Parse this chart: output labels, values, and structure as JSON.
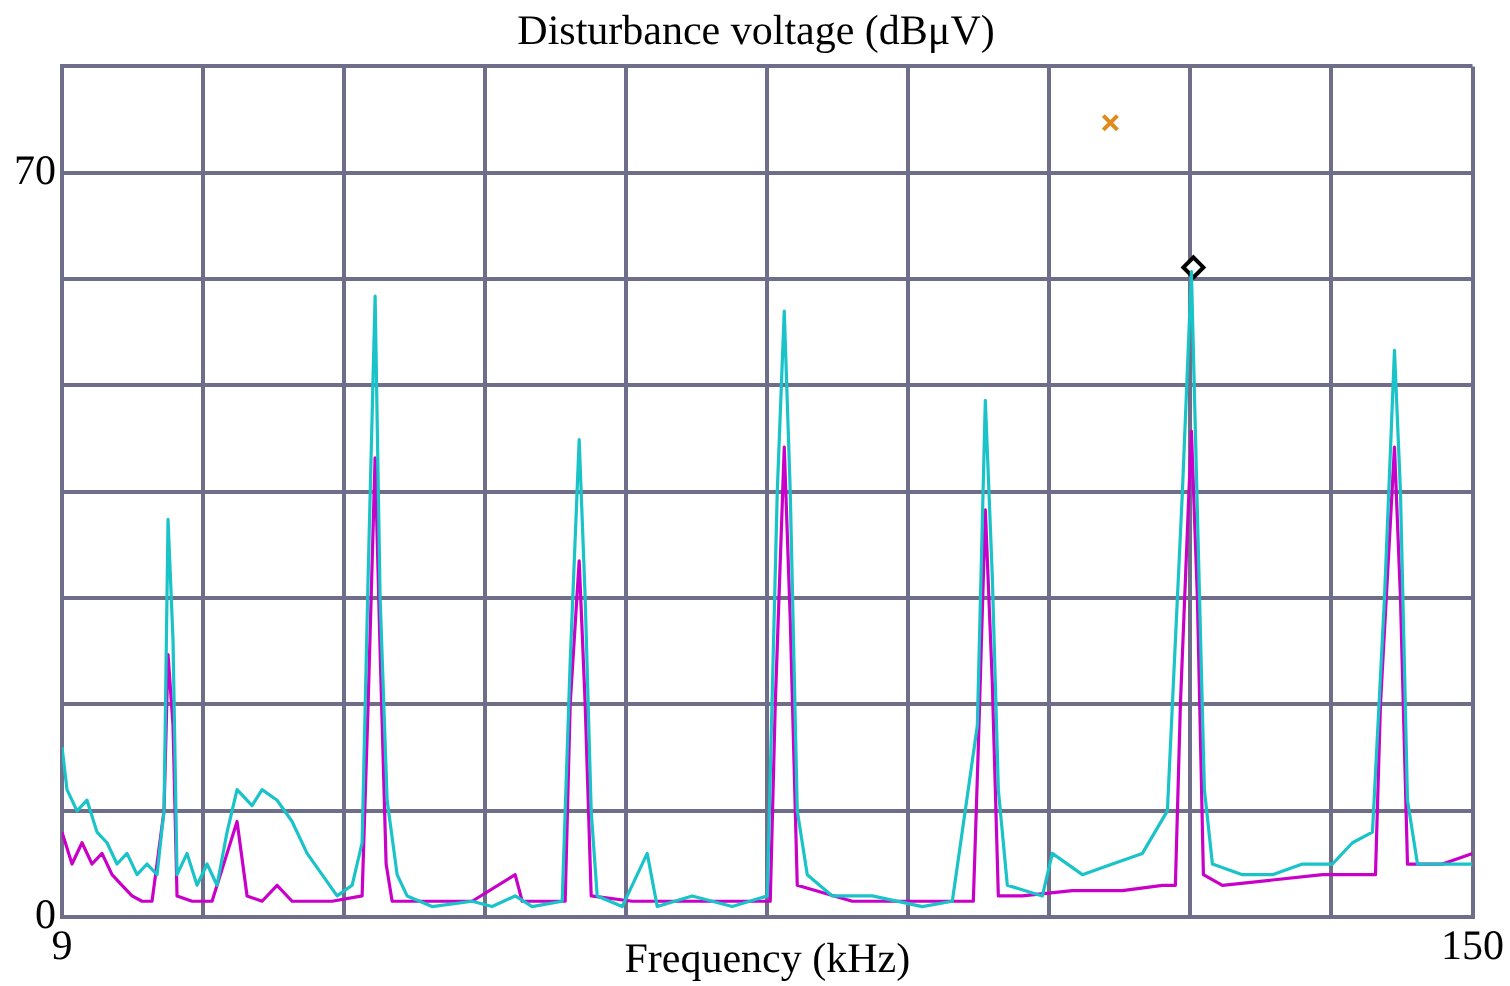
{
  "chart_data": {
    "type": "line",
    "title": "Disturbance voltage (dBμV)",
    "xlabel": "Frequency (kHz)",
    "xlim": [
      9,
      150
    ],
    "xticks": [
      9,
      {
        "value": 23.1,
        "label": null
      },
      {
        "value": 37.2,
        "label": null
      },
      {
        "value": 51.3,
        "label": null
      },
      {
        "value": 65.4,
        "label": null
      },
      {
        "value": 79.5,
        "label": null
      },
      {
        "value": 93.6,
        "label": null
      },
      {
        "value": 107.7,
        "label": null
      },
      {
        "value": 121.8,
        "label": null
      },
      {
        "value": 135.9,
        "label": null
      },
      150
    ],
    "ylim": [
      0,
      80
    ],
    "yticks": [
      0,
      {
        "value": 10,
        "label": null
      },
      {
        "value": 20,
        "label": null
      },
      {
        "value": 30,
        "label": null
      },
      {
        "value": 40,
        "label": null
      },
      {
        "value": 50,
        "label": null
      },
      {
        "value": 60,
        "label": null
      },
      70,
      {
        "value": 80,
        "label": null
      }
    ],
    "grid": true,
    "legend": false,
    "series": [
      {
        "color": "#19c3c8",
        "marker": "none",
        "x": [
          9,
          9.5,
          10.5,
          11.5,
          12.5,
          13.5,
          14.5,
          15.5,
          16.5,
          17.5,
          18.5,
          19.2,
          19.6,
          20.1,
          20.5,
          21.5,
          22.5,
          23.5,
          24.5,
          25.5,
          26.5,
          28,
          29,
          30.5,
          32,
          33.5,
          35,
          36.5,
          38,
          39,
          39.6,
          40.3,
          40.8,
          41.5,
          42.5,
          43.5,
          46,
          50,
          52,
          54.3,
          56,
          59,
          59.8,
          60.7,
          61.3,
          61.9,
          62.5,
          65,
          67.5,
          68.5,
          72,
          76,
          79.5,
          80.5,
          81.2,
          81.8,
          82.5,
          83.5,
          86,
          90,
          95,
          98,
          100.5,
          101.3,
          102,
          102.6,
          103.5,
          107,
          108,
          111,
          114,
          117,
          119.5,
          121,
          121.9,
          122.5,
          123.2,
          124,
          127,
          130,
          133,
          136,
          138,
          140,
          141.2,
          142.2,
          142.8,
          143.5,
          144.5,
          147,
          150
        ],
        "values": [
          16,
          12,
          10,
          11,
          8,
          7,
          5,
          6,
          4,
          5,
          4,
          10,
          37.4,
          26,
          4,
          6,
          3,
          5,
          3,
          8,
          12,
          10.5,
          12,
          11,
          9,
          6,
          4,
          2,
          3,
          7,
          32,
          58.4,
          30,
          11,
          4,
          2,
          1,
          1.5,
          1,
          2,
          1,
          1.5,
          24,
          44.9,
          30,
          10,
          2,
          1,
          6,
          1,
          2,
          1,
          2,
          40,
          57,
          40,
          10,
          4,
          2,
          2,
          1,
          1.5,
          18,
          48.6,
          32,
          12,
          3,
          2,
          6,
          4,
          5,
          6,
          10,
          40,
          60.7,
          38,
          12,
          5,
          4,
          4,
          5,
          5,
          7,
          8,
          30,
          53.3,
          40,
          11,
          5,
          5,
          5
        ]
      },
      {
        "color": "#c800c8",
        "marker": "none",
        "x": [
          9,
          10,
          11,
          12,
          13,
          14,
          15,
          16,
          17,
          18,
          19.2,
          19.6,
          20.1,
          20.5,
          22,
          24,
          25.5,
          26.5,
          27.5,
          29,
          30.5,
          32,
          36,
          39,
          39.6,
          40.3,
          40.8,
          41.4,
          42,
          50,
          54.3,
          55,
          59.3,
          59.8,
          60.7,
          61.3,
          61.9,
          66,
          72,
          79.8,
          80.3,
          81.2,
          81.8,
          82.5,
          88,
          95,
          98,
          100.1,
          100.6,
          101.3,
          102,
          102.6,
          105,
          110,
          115,
          119,
          120.3,
          120.8,
          121.9,
          122.5,
          123.1,
          125,
          130,
          135,
          139,
          140.3,
          140.8,
          142.2,
          142.8,
          143.5,
          147,
          150
        ],
        "values": [
          8,
          5,
          7,
          5,
          6,
          4,
          3,
          2,
          1.5,
          1.5,
          10,
          24.7,
          18,
          2,
          1.5,
          1.5,
          6,
          9,
          2,
          1.5,
          3,
          1.5,
          1.5,
          2,
          20,
          43.2,
          25,
          5,
          1.5,
          1.5,
          4,
          1.5,
          1.5,
          20,
          33.5,
          20,
          2,
          1.5,
          1.5,
          1.5,
          20,
          44.2,
          28,
          3,
          1.5,
          1.5,
          1.5,
          1.5,
          16,
          38.3,
          22,
          2,
          2,
          2.5,
          2.5,
          3,
          3,
          20,
          45.7,
          30,
          4,
          3,
          3.5,
          4,
          4,
          4,
          20,
          44.2,
          30,
          5,
          5,
          6
        ]
      },
      {
        "type": "scatter",
        "color": "#e08a1a",
        "marker": "cross",
        "x": [
          113.8
        ],
        "values": [
          74.7
        ]
      },
      {
        "type": "scatter",
        "color": "#000000",
        "marker": "diamond",
        "x": [
          122.1
        ],
        "values": [
          61.1
        ]
      }
    ]
  }
}
